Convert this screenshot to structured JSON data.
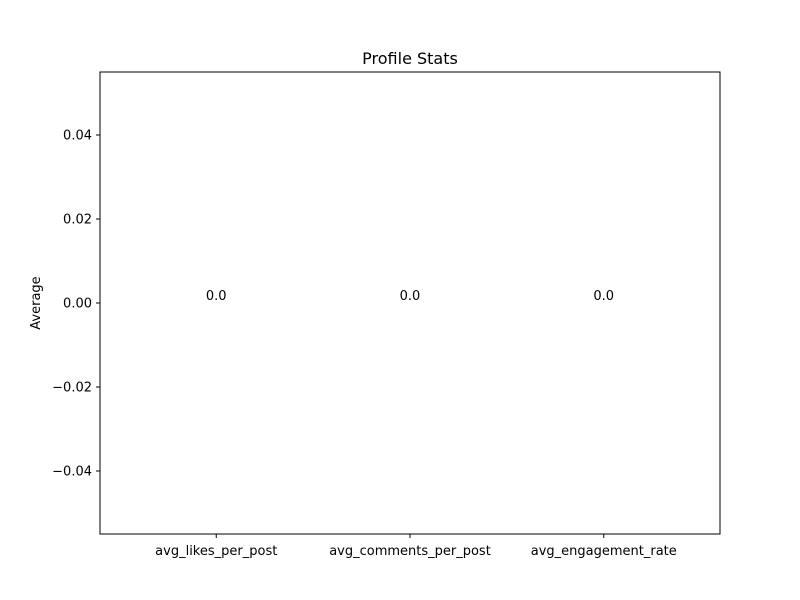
{
  "chart_data": {
    "type": "bar",
    "title": "Profile Stats",
    "xlabel": "",
    "ylabel": "Average",
    "categories": [
      "avg_likes_per_post",
      "avg_comments_per_post",
      "avg_engagement_rate"
    ],
    "values": [
      0.0,
      0.0,
      0.0
    ],
    "value_labels": [
      "0.0",
      "0.0",
      "0.0"
    ],
    "ylim": [
      -0.055,
      0.055
    ],
    "yticks": [
      -0.04,
      -0.02,
      0.0,
      0.02,
      0.04
    ],
    "ytick_labels": [
      "−0.04",
      "−0.02",
      "0.00",
      "0.02",
      "0.04"
    ],
    "grid": false,
    "legend": "none",
    "bar_color": "#1f77b4"
  }
}
